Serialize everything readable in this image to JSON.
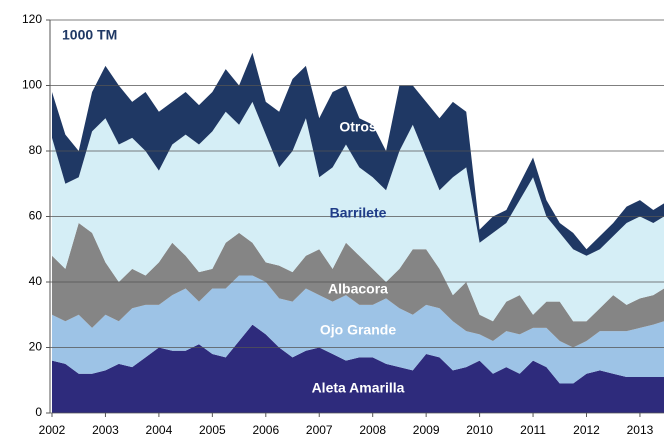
{
  "chart_data": {
    "type": "stacked_area",
    "annotation": "1000 TM",
    "x": [
      2002,
      2002.25,
      2002.5,
      2002.75,
      2003,
      2003.25,
      2003.5,
      2003.75,
      2004,
      2004.25,
      2004.5,
      2004.75,
      2005,
      2005.25,
      2005.5,
      2005.75,
      2006,
      2006.25,
      2006.5,
      2006.75,
      2007,
      2007.25,
      2007.5,
      2007.75,
      2008,
      2008.25,
      2008.5,
      2008.75,
      2009,
      2009.25,
      2009.5,
      2009.75,
      2010,
      2010.25,
      2010.5,
      2010.75,
      2011,
      2011.25,
      2011.5,
      2011.75,
      2012,
      2012.25,
      2012.5,
      2012.75,
      2013,
      2013.25,
      2013.45
    ],
    "series": [
      {
        "name": "Aleta Amarilla",
        "color": "#2e2b7c",
        "label_color": "#ffffff",
        "values": [
          16,
          15,
          12,
          12,
          13,
          15,
          14,
          17,
          20,
          19,
          19,
          21,
          18,
          17,
          22,
          27,
          24,
          20,
          17,
          19,
          20,
          18,
          16,
          17,
          17,
          15,
          14,
          13,
          18,
          17,
          13,
          14,
          16,
          12,
          14,
          12,
          16,
          14,
          9,
          9,
          12,
          13,
          12,
          11,
          11,
          11,
          11
        ]
      },
      {
        "name": "Ojo Grande",
        "color": "#9dc3e6",
        "label_color": "#ffffff",
        "values": [
          14,
          13,
          18,
          14,
          17,
          13,
          18,
          16,
          13,
          17,
          19,
          13,
          20,
          21,
          20,
          15,
          16,
          15,
          17,
          19,
          16,
          16,
          20,
          16,
          16,
          20,
          18,
          17,
          15,
          15,
          15,
          11,
          8,
          10,
          11,
          12,
          10,
          12,
          13,
          11,
          10,
          12,
          13,
          14,
          15,
          16,
          17
        ]
      },
      {
        "name": "Albacora",
        "color": "#858585",
        "label_color": "#ffffff",
        "values": [
          18,
          16,
          28,
          29,
          16,
          12,
          12,
          9,
          13,
          16,
          10,
          9,
          6,
          14,
          13,
          10,
          6,
          10,
          9,
          10,
          14,
          10,
          16,
          15,
          11,
          5,
          12,
          20,
          17,
          12,
          8,
          15,
          6,
          6,
          9,
          12,
          4,
          8,
          12,
          8,
          6,
          7,
          11,
          8,
          9,
          9,
          10
        ]
      },
      {
        "name": "Barrilete",
        "color": "#d5eef6",
        "label_color": "#1f3c88",
        "values": [
          36,
          26,
          14,
          31,
          44,
          42,
          40,
          38,
          28,
          30,
          37,
          39,
          42,
          40,
          33,
          43,
          39,
          30,
          37,
          42,
          22,
          31,
          30,
          27,
          28,
          28,
          36,
          38,
          28,
          24,
          36,
          35,
          22,
          27,
          24,
          29,
          42,
          26,
          21,
          22,
          20,
          18,
          18,
          25,
          25,
          22,
          22
        ]
      },
      {
        "name": "Otros",
        "color": "#1f3864",
        "label_color": "#ffffff",
        "values": [
          14,
          15,
          8,
          12,
          16,
          18,
          11,
          18,
          18,
          13,
          13,
          12,
          12,
          13,
          12,
          15,
          10,
          17,
          22,
          16,
          18,
          23,
          18,
          15,
          16,
          12,
          20,
          12,
          17,
          22,
          23,
          17,
          4,
          5,
          4,
          5,
          6,
          5,
          3,
          5,
          2,
          4,
          4,
          5,
          5,
          4,
          4
        ]
      }
    ],
    "xlim": [
      2002,
      2013.45
    ],
    "xticks": [
      2002,
      2003,
      2004,
      2005,
      2006,
      2007,
      2008,
      2009,
      2010,
      2011,
      2012,
      2013
    ],
    "ylim": [
      0,
      120
    ],
    "yticks": [
      0,
      20,
      40,
      60,
      80,
      100,
      120
    ],
    "grid": true
  }
}
